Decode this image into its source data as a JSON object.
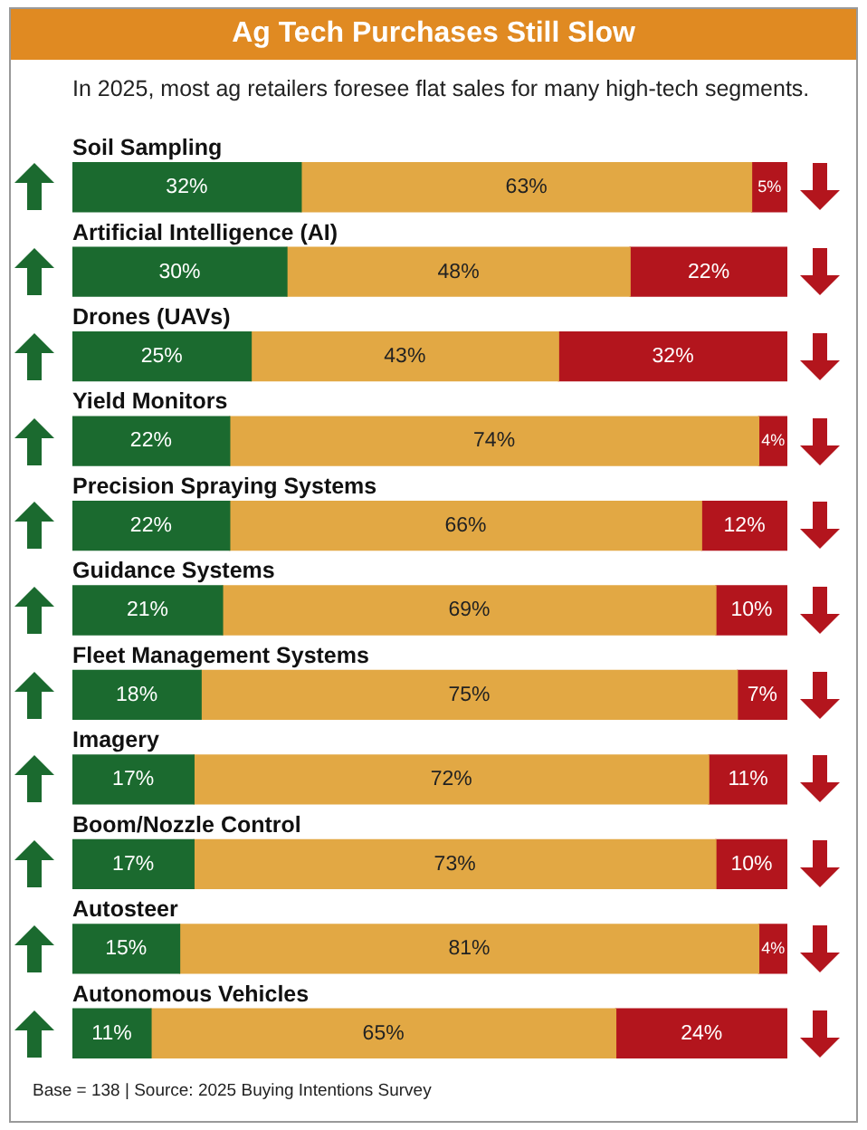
{
  "chart_data": {
    "type": "bar",
    "orientation": "horizontal",
    "stacked": true,
    "title": "Ag Tech Purchases Still Slow",
    "subtitle": "In 2025, most ag retailers foresee flat sales for many high-tech segments.",
    "categories": [
      "Soil Sampling",
      "Artificial Intelligence (AI)",
      "Drones (UAVs)",
      "Yield Monitors",
      "Precision Spraying Systems",
      "Guidance Systems",
      "Fleet Management Systems",
      "Imagery",
      "Boom/Nozzle Control",
      "Autosteer",
      "Autonomous Vehicles"
    ],
    "series": [
      {
        "color": "#1b6a2f",
        "values": [
          32,
          30,
          25,
          22,
          22,
          21,
          18,
          17,
          17,
          15,
          11
        ],
        "value_labels": [
          "32%",
          "30%",
          "25%",
          "22%",
          "22%",
          "21%",
          "18%",
          "17%",
          "17%",
          "15%",
          "11%"
        ]
      },
      {
        "color": "#e2a844",
        "values": [
          63,
          48,
          43,
          74,
          66,
          69,
          75,
          72,
          73,
          81,
          65
        ],
        "value_labels": [
          "63%",
          "48%",
          "43%",
          "74%",
          "66%",
          "69%",
          "75%",
          "72%",
          "73%",
          "81%",
          "65%"
        ]
      },
      {
        "color": "#b3151d",
        "values": [
          5,
          22,
          32,
          4,
          12,
          10,
          7,
          11,
          10,
          4,
          24
        ],
        "value_labels": [
          "5%",
          "22%",
          "32%",
          "4%",
          "12%",
          "10%",
          "7%",
          "11%",
          "10%",
          "4%",
          "24%"
        ]
      }
    ],
    "xlim": [
      0,
      100
    ],
    "tick_labels": false,
    "legend": false,
    "annotations": [
      "Base = 138 | Source: 2025 Buying Intentions Survey"
    ]
  }
}
